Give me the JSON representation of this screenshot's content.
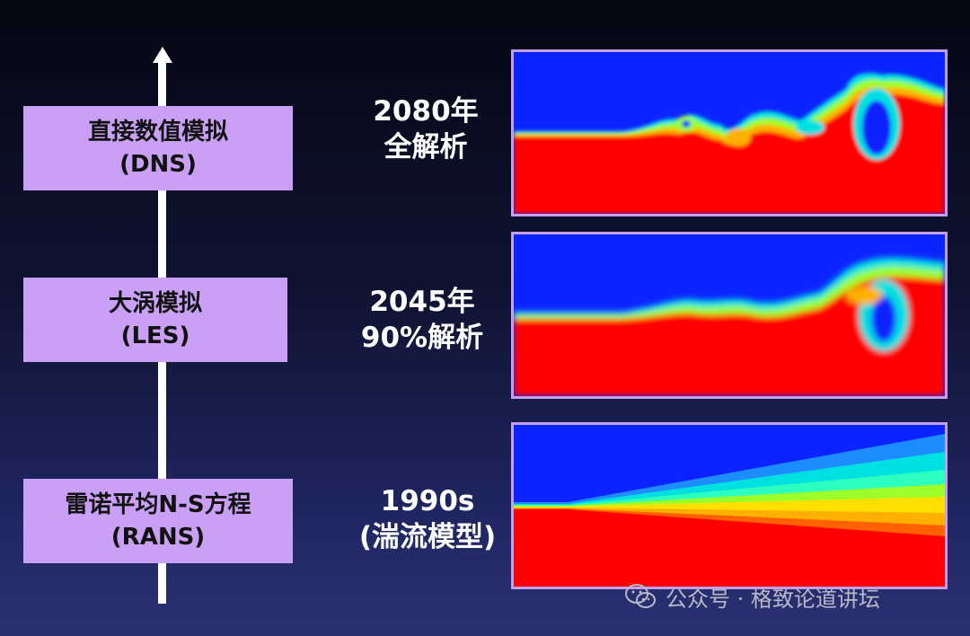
{
  "levels": [
    {
      "name": "直接数值模拟",
      "abbr": "(DNS)",
      "year": "2080年",
      "resolution": "全解析"
    },
    {
      "name": "大涡模拟",
      "abbr": "(LES)",
      "year": "2045年",
      "resolution": "90%解析"
    },
    {
      "name": "雷诺平均N-S方程",
      "abbr": "(RANS)",
      "year": "1990s",
      "resolution": "(湍流模型)"
    }
  ],
  "watermark": {
    "text": "公众号 · 格致论道讲坛",
    "icon": "wechat-icon"
  },
  "colors": {
    "box": "#c9a0f5",
    "frame": "#c39ff0",
    "field_low": "#0b24ff",
    "field_high": "#ff0000"
  }
}
